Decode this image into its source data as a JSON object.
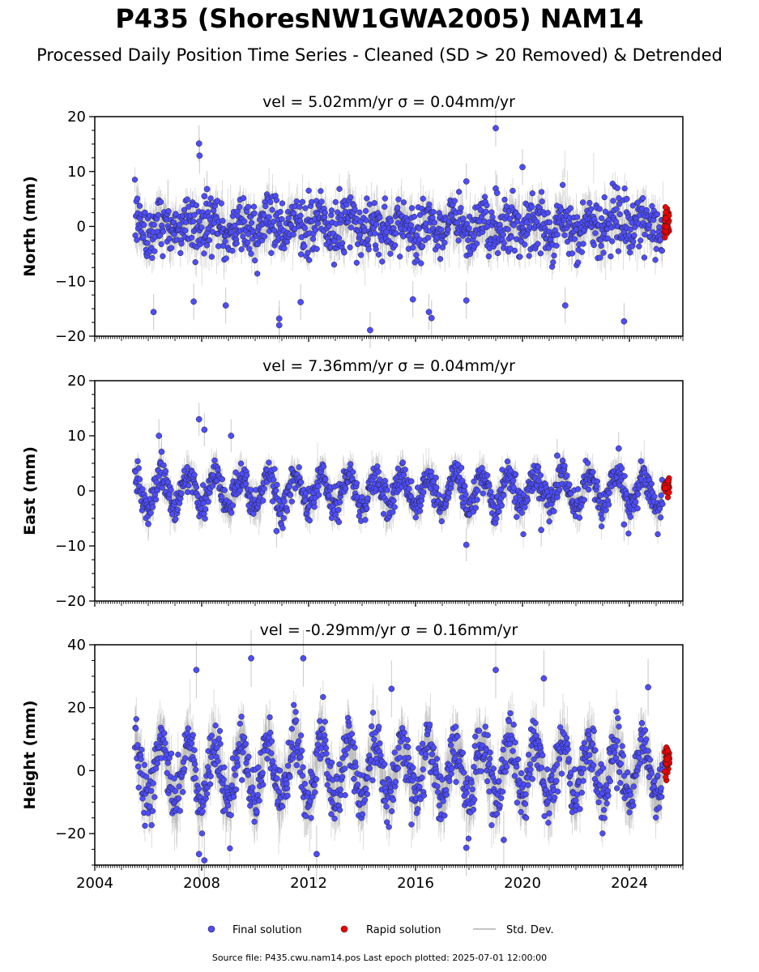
{
  "figure": {
    "title": "P435 (ShoresNW1GWA2005) NAM14",
    "subtitle": "Processed Daily Position Time Series - Cleaned (SD > 20 Removed) & Detrended",
    "footer": "Source file: P435.cwu.nam14.pos  Last epoch plotted: 2025-07-01 12:00:00"
  },
  "legend": {
    "final_label": "Final solution",
    "rapid_label": "Rapid solution",
    "std_label": "Std. Dev."
  },
  "colors": {
    "final": "#4d4dff",
    "rapid": "#ee0000",
    "stddev": "#b0b0b0",
    "marker_edge": "#222222"
  },
  "chart_data": [
    {
      "type": "scatter",
      "panel": "north",
      "title": "vel = 5.02mm/yr   σ = 0.04mm/yr",
      "ylabel": "North (mm)",
      "xlim": [
        2004.0,
        2026.0
      ],
      "ylim": [
        -20,
        20
      ],
      "yticks": [
        -20,
        -10,
        0,
        10,
        20
      ],
      "data_span": [
        2005.5,
        2025.25
      ],
      "rapid_span": [
        2025.3,
        2025.5
      ],
      "noise_std": 2.6,
      "annual_amplitude": 1.3,
      "error_bar_mm": 2.2,
      "outliers": [
        {
          "x": 2007.9,
          "y": 15.1
        },
        {
          "x": 2007.92,
          "y": 12.9
        },
        {
          "x": 2008.2,
          "y": 6.8
        },
        {
          "x": 2008.1,
          "y": 5.5
        },
        {
          "x": 2019.0,
          "y": 17.9
        },
        {
          "x": 2019.0,
          "y": 6.9
        },
        {
          "x": 2019.05,
          "y": 6.1
        },
        {
          "x": 2020.0,
          "y": 10.8
        },
        {
          "x": 2017.9,
          "y": 8.2
        },
        {
          "x": 2023.9,
          "y": 5.0
        },
        {
          "x": 2006.2,
          "y": -15.6
        },
        {
          "x": 2010.9,
          "y": -16.8
        },
        {
          "x": 2010.9,
          "y": -18.0
        },
        {
          "x": 2014.3,
          "y": -18.9
        },
        {
          "x": 2016.5,
          "y": -15.6
        },
        {
          "x": 2016.6,
          "y": -16.7
        },
        {
          "x": 2023.8,
          "y": -17.3
        },
        {
          "x": 2008.9,
          "y": -14.4
        },
        {
          "x": 2007.7,
          "y": -13.7
        },
        {
          "x": 2011.7,
          "y": -13.8
        },
        {
          "x": 2015.9,
          "y": -13.3
        },
        {
          "x": 2017.9,
          "y": -13.5
        },
        {
          "x": 2021.6,
          "y": -14.4
        }
      ]
    },
    {
      "type": "scatter",
      "panel": "east",
      "title": "vel = 7.36mm/yr   σ = 0.04mm/yr",
      "ylabel": "East (mm)",
      "xlim": [
        2004.0,
        2026.0
      ],
      "ylim": [
        -20,
        20
      ],
      "yticks": [
        -20,
        -10,
        0,
        10,
        20
      ],
      "data_span": [
        2005.5,
        2025.25
      ],
      "rapid_span": [
        2025.3,
        2025.5
      ],
      "noise_std": 1.5,
      "annual_amplitude": 2.8,
      "error_bar_mm": 2.0,
      "outliers": [
        {
          "x": 2007.9,
          "y": 13.0
        },
        {
          "x": 2008.1,
          "y": 11.1
        },
        {
          "x": 2006.4,
          "y": 10.0
        },
        {
          "x": 2009.1,
          "y": 10.0
        },
        {
          "x": 2006.5,
          "y": 7.1
        },
        {
          "x": 2023.6,
          "y": 7.7
        },
        {
          "x": 2021.3,
          "y": 6.4
        },
        {
          "x": 2017.9,
          "y": -9.8
        },
        {
          "x": 2010.8,
          "y": -7.3
        },
        {
          "x": 2020.7,
          "y": -7.1
        },
        {
          "x": 2006.0,
          "y": -6.0
        },
        {
          "x": 2023.8,
          "y": -6.1
        }
      ]
    },
    {
      "type": "scatter",
      "panel": "height",
      "title": "vel = -0.29mm/yr   σ = 0.16mm/yr",
      "ylabel": "Height (mm)",
      "xlim": [
        2004.0,
        2026.0
      ],
      "ylim": [
        -30,
        40
      ],
      "yticks": [
        -20,
        0,
        20,
        40
      ],
      "data_span": [
        2005.5,
        2025.25
      ],
      "rapid_span": [
        2025.3,
        2025.5
      ],
      "noise_std": 4.5,
      "annual_amplitude": 9.0,
      "error_bar_mm": 6.0,
      "outliers": [
        {
          "x": 2007.8,
          "y": 32.0
        },
        {
          "x": 2009.85,
          "y": 35.7
        },
        {
          "x": 2011.8,
          "y": 35.7
        },
        {
          "x": 2019.0,
          "y": 32.0
        },
        {
          "x": 2007.9,
          "y": -26.5
        },
        {
          "x": 2008.1,
          "y": -28.5
        },
        {
          "x": 2012.3,
          "y": -26.5
        },
        {
          "x": 2017.9,
          "y": -24.5
        },
        {
          "x": 2019.3,
          "y": -22.0
        },
        {
          "x": 2020.8,
          "y": 29.3
        },
        {
          "x": 2024.7,
          "y": 26.5
        },
        {
          "x": 2015.1,
          "y": 26.0
        }
      ],
      "xticks": [
        2004,
        2008,
        2012,
        2016,
        2020,
        2024
      ],
      "xtick_labels": [
        "2004",
        "2008",
        "2012",
        "2016",
        "2020",
        "2024"
      ]
    }
  ]
}
